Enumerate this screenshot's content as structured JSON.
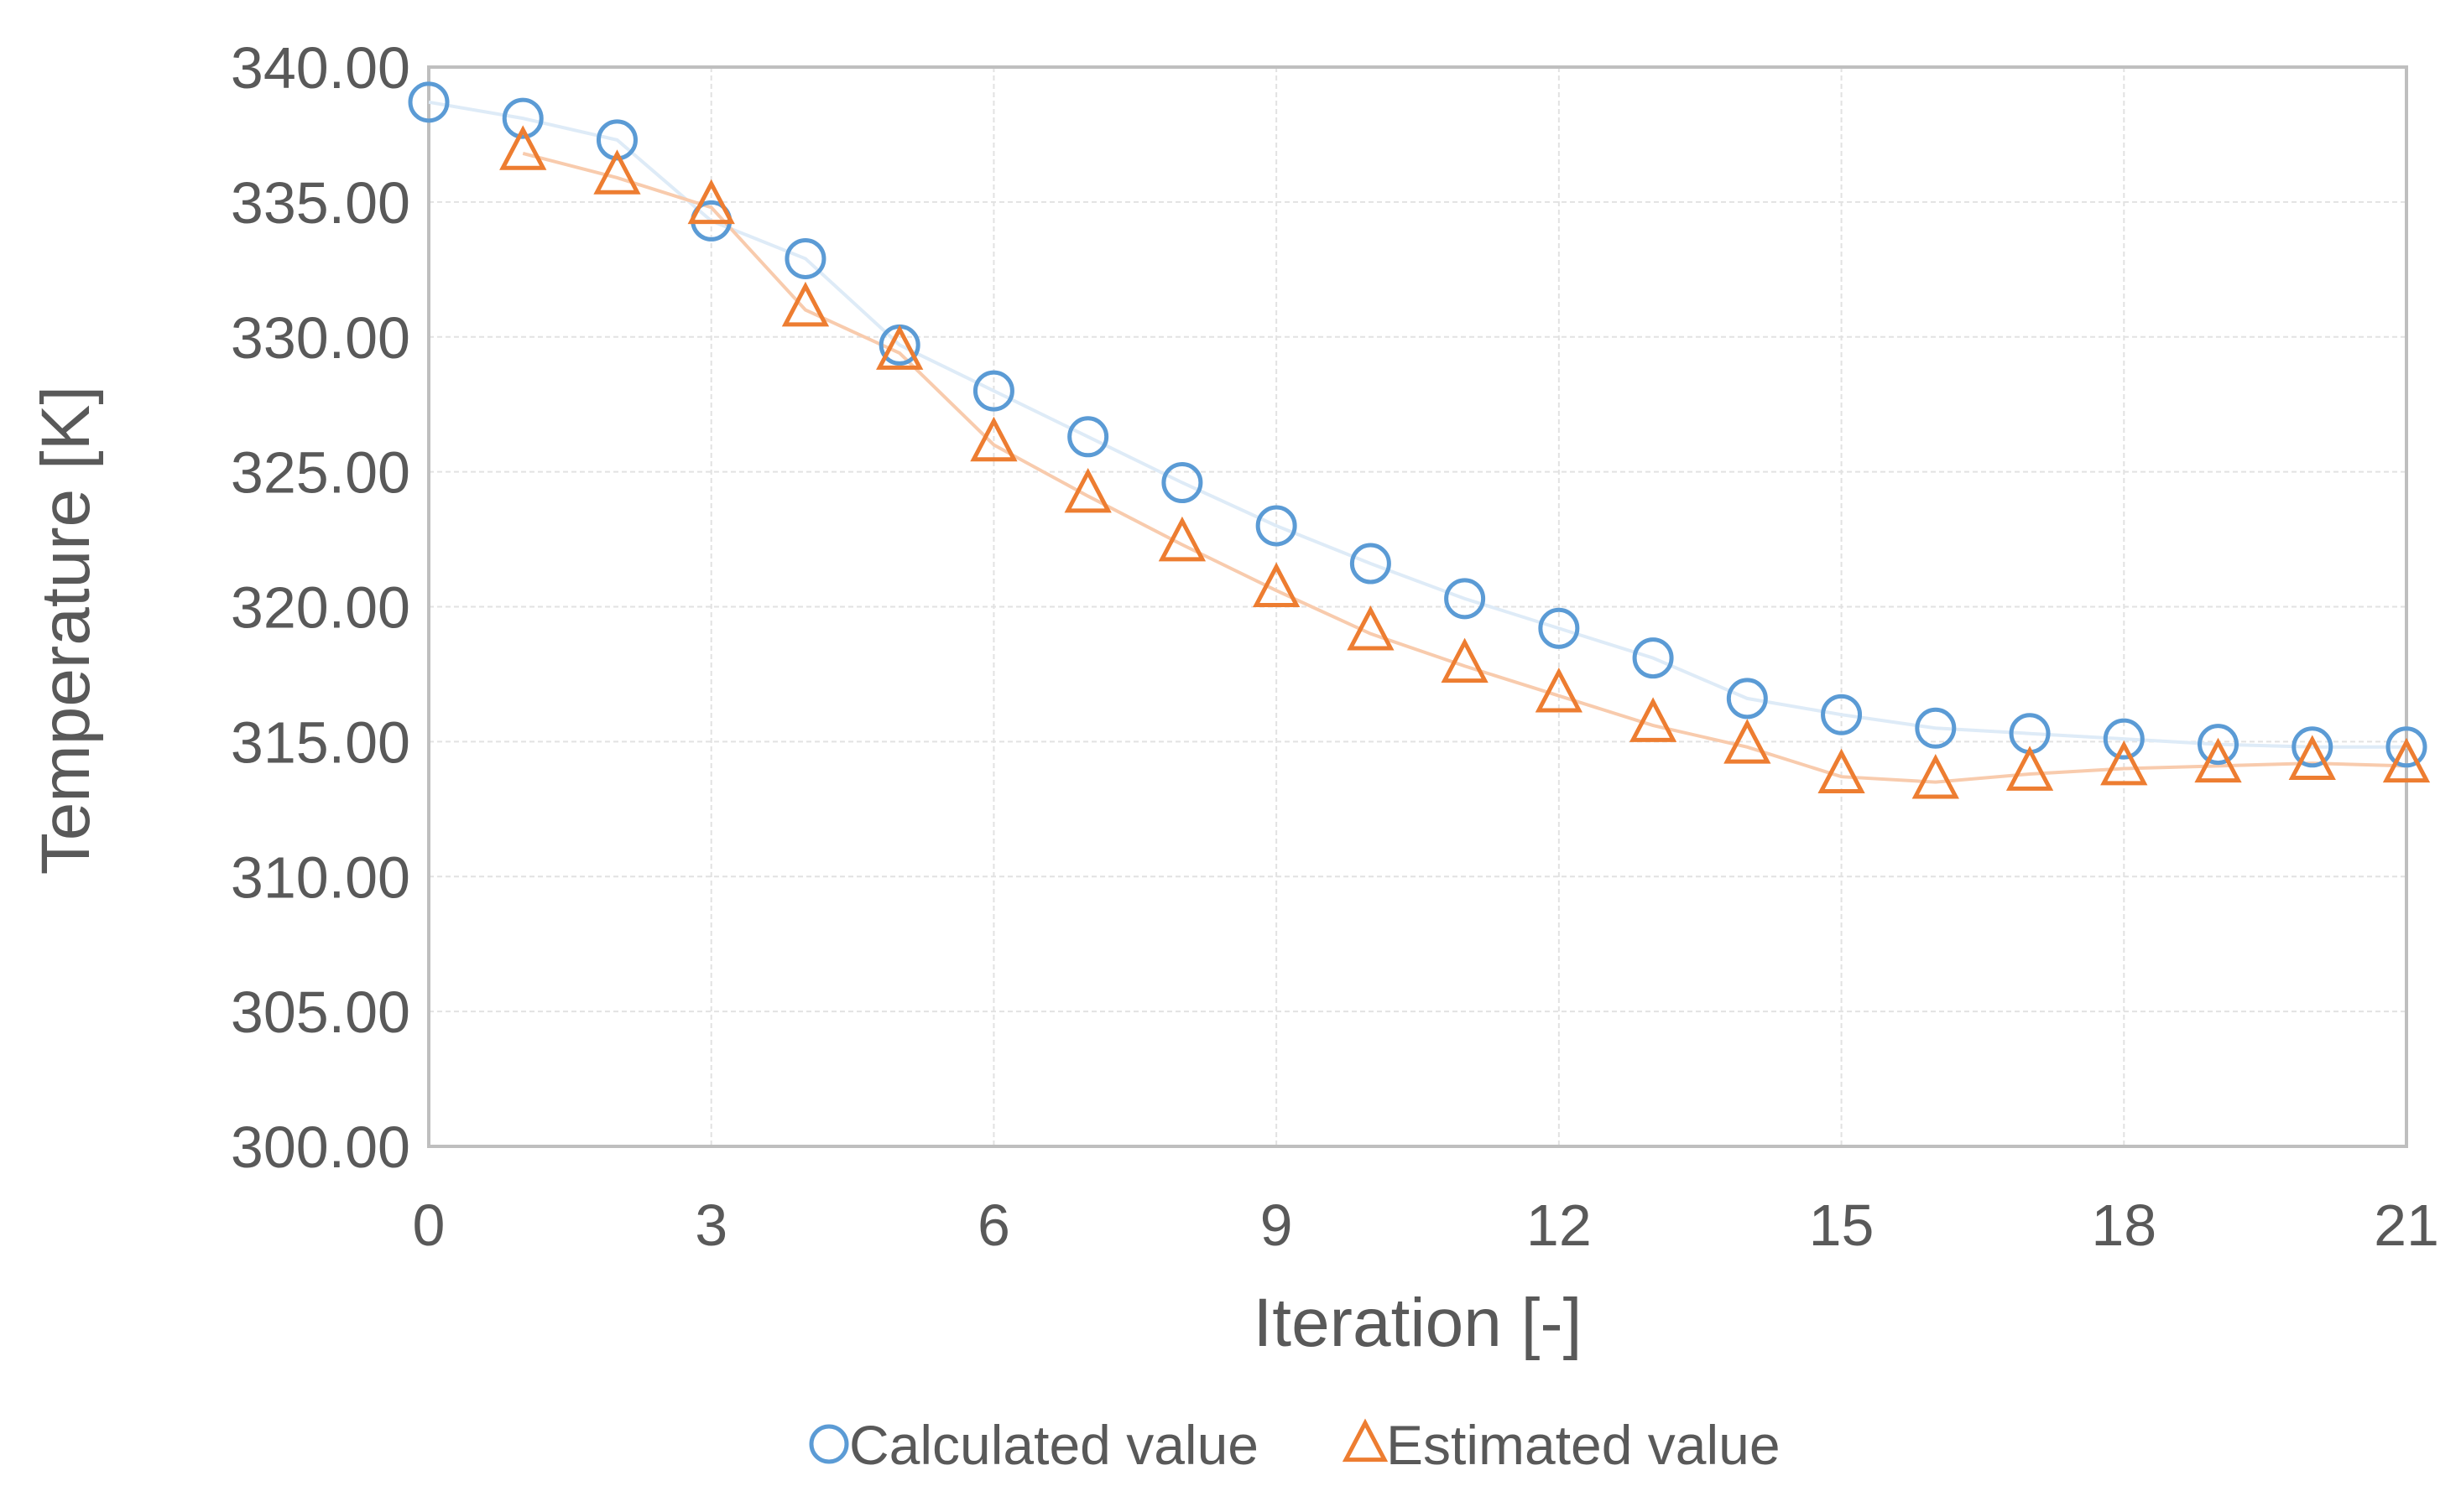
{
  "chart_data": {
    "type": "line",
    "title": "",
    "xlabel": "Iteration [-]",
    "ylabel": "Temperature [K]",
    "xlim": [
      0,
      21
    ],
    "ylim": [
      300,
      340
    ],
    "x_ticks": [
      0,
      3,
      6,
      9,
      12,
      15,
      18,
      21
    ],
    "y_ticks": [
      300,
      305,
      310,
      315,
      320,
      325,
      330,
      335,
      340
    ],
    "x_tick_labels": [
      "0",
      "3",
      "6",
      "9",
      "12",
      "15",
      "18",
      "21"
    ],
    "y_tick_labels": [
      "300.00",
      "305.00",
      "310.00",
      "315.00",
      "320.00",
      "325.00",
      "330.00",
      "335.00",
      "340.00"
    ],
    "grid": true,
    "legend_position": "bottom-center",
    "series": [
      {
        "name": "Calculated value",
        "marker": "circle",
        "color": "#5B9BD5",
        "line_color": "#DEEBF7",
        "x": [
          0,
          1,
          2,
          3,
          4,
          5,
          6,
          7,
          8,
          9,
          10,
          11,
          12,
          13,
          14,
          15,
          16,
          17,
          18,
          19,
          20,
          21
        ],
        "values": [
          338.7,
          338.1,
          337.3,
          334.3,
          332.9,
          329.7,
          328.0,
          326.3,
          324.6,
          323.0,
          321.6,
          320.3,
          319.2,
          318.1,
          316.6,
          316.0,
          315.5,
          315.3,
          315.1,
          314.9,
          314.8,
          314.8
        ]
      },
      {
        "name": "Estimated value",
        "marker": "triangle",
        "color": "#ED7D31",
        "line_color": "#F8CBAD",
        "x": [
          1,
          2,
          3,
          4,
          5,
          6,
          7,
          8,
          9,
          10,
          11,
          12,
          13,
          14,
          15,
          16,
          17,
          18,
          19,
          20,
          21
        ],
        "values": [
          336.8,
          335.9,
          334.8,
          331.0,
          329.4,
          326.0,
          324.1,
          322.3,
          320.6,
          319.0,
          317.8,
          316.7,
          315.6,
          314.8,
          313.7,
          313.5,
          313.8,
          314.0,
          314.1,
          314.2,
          314.1
        ]
      }
    ]
  }
}
